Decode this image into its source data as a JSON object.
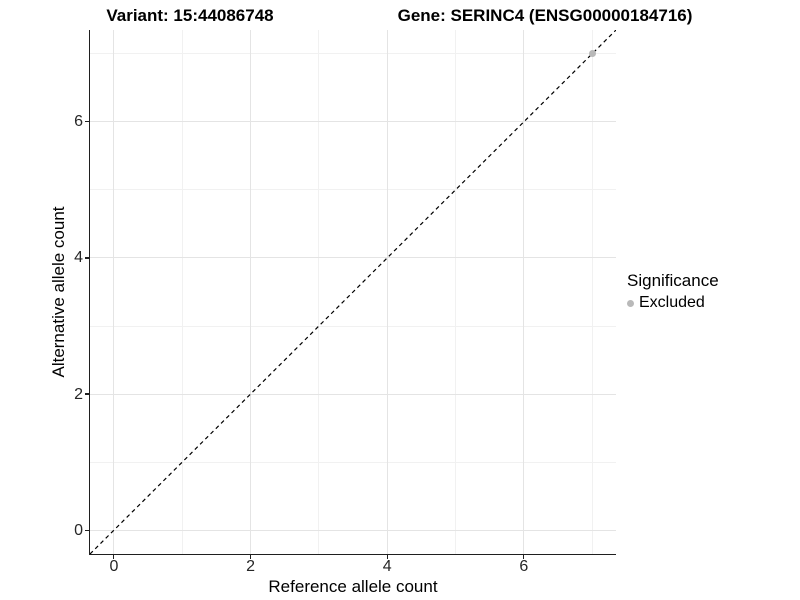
{
  "header": {
    "variant_title": "Variant: 15:44086748",
    "gene_title": "Gene: SERINC4 (ENSG00000184716)"
  },
  "axes": {
    "x_label": "Reference allele count",
    "y_label": "Alternative allele count"
  },
  "legend": {
    "title": "Significance",
    "items": [
      {
        "label": "Excluded",
        "color": "#b9b9b9"
      }
    ]
  },
  "colors": {
    "background": "#ffffff",
    "grid_major": "#e4e4e4",
    "grid_minor": "#f1f1f1",
    "axis_line": "#1f1f1f",
    "tick_mark": "#1f1f1f",
    "tick_label": "#262626",
    "identity_line": "#000000",
    "excluded_point": "#b9b9b9"
  },
  "chart_data": {
    "type": "scatter",
    "title": "Variant: 15:44086748   Gene: SERINC4 (ENSG00000184716)",
    "xlabel": "Reference allele count",
    "ylabel": "Alternative allele count",
    "xlim": [
      -0.35,
      7.35
    ],
    "ylim": [
      -0.35,
      7.35
    ],
    "x_ticks": [
      0,
      2,
      4,
      6
    ],
    "y_ticks": [
      0,
      2,
      4,
      6
    ],
    "x_minor_gridlines": [
      1,
      3,
      5,
      7
    ],
    "y_minor_gridlines": [
      1,
      3,
      5,
      7
    ],
    "grid": true,
    "legend_position": "right",
    "legend_title": "Significance",
    "series": [
      {
        "name": "Excluded",
        "color": "#b9b9b9",
        "marker": "circle",
        "points": [
          {
            "x": 7,
            "y": 7
          }
        ]
      }
    ],
    "reference_line": {
      "type": "identity",
      "style": "dashed",
      "color": "#000000",
      "from": {
        "x": -0.35,
        "y": -0.35
      },
      "to": {
        "x": 7.35,
        "y": 7.35
      }
    }
  }
}
